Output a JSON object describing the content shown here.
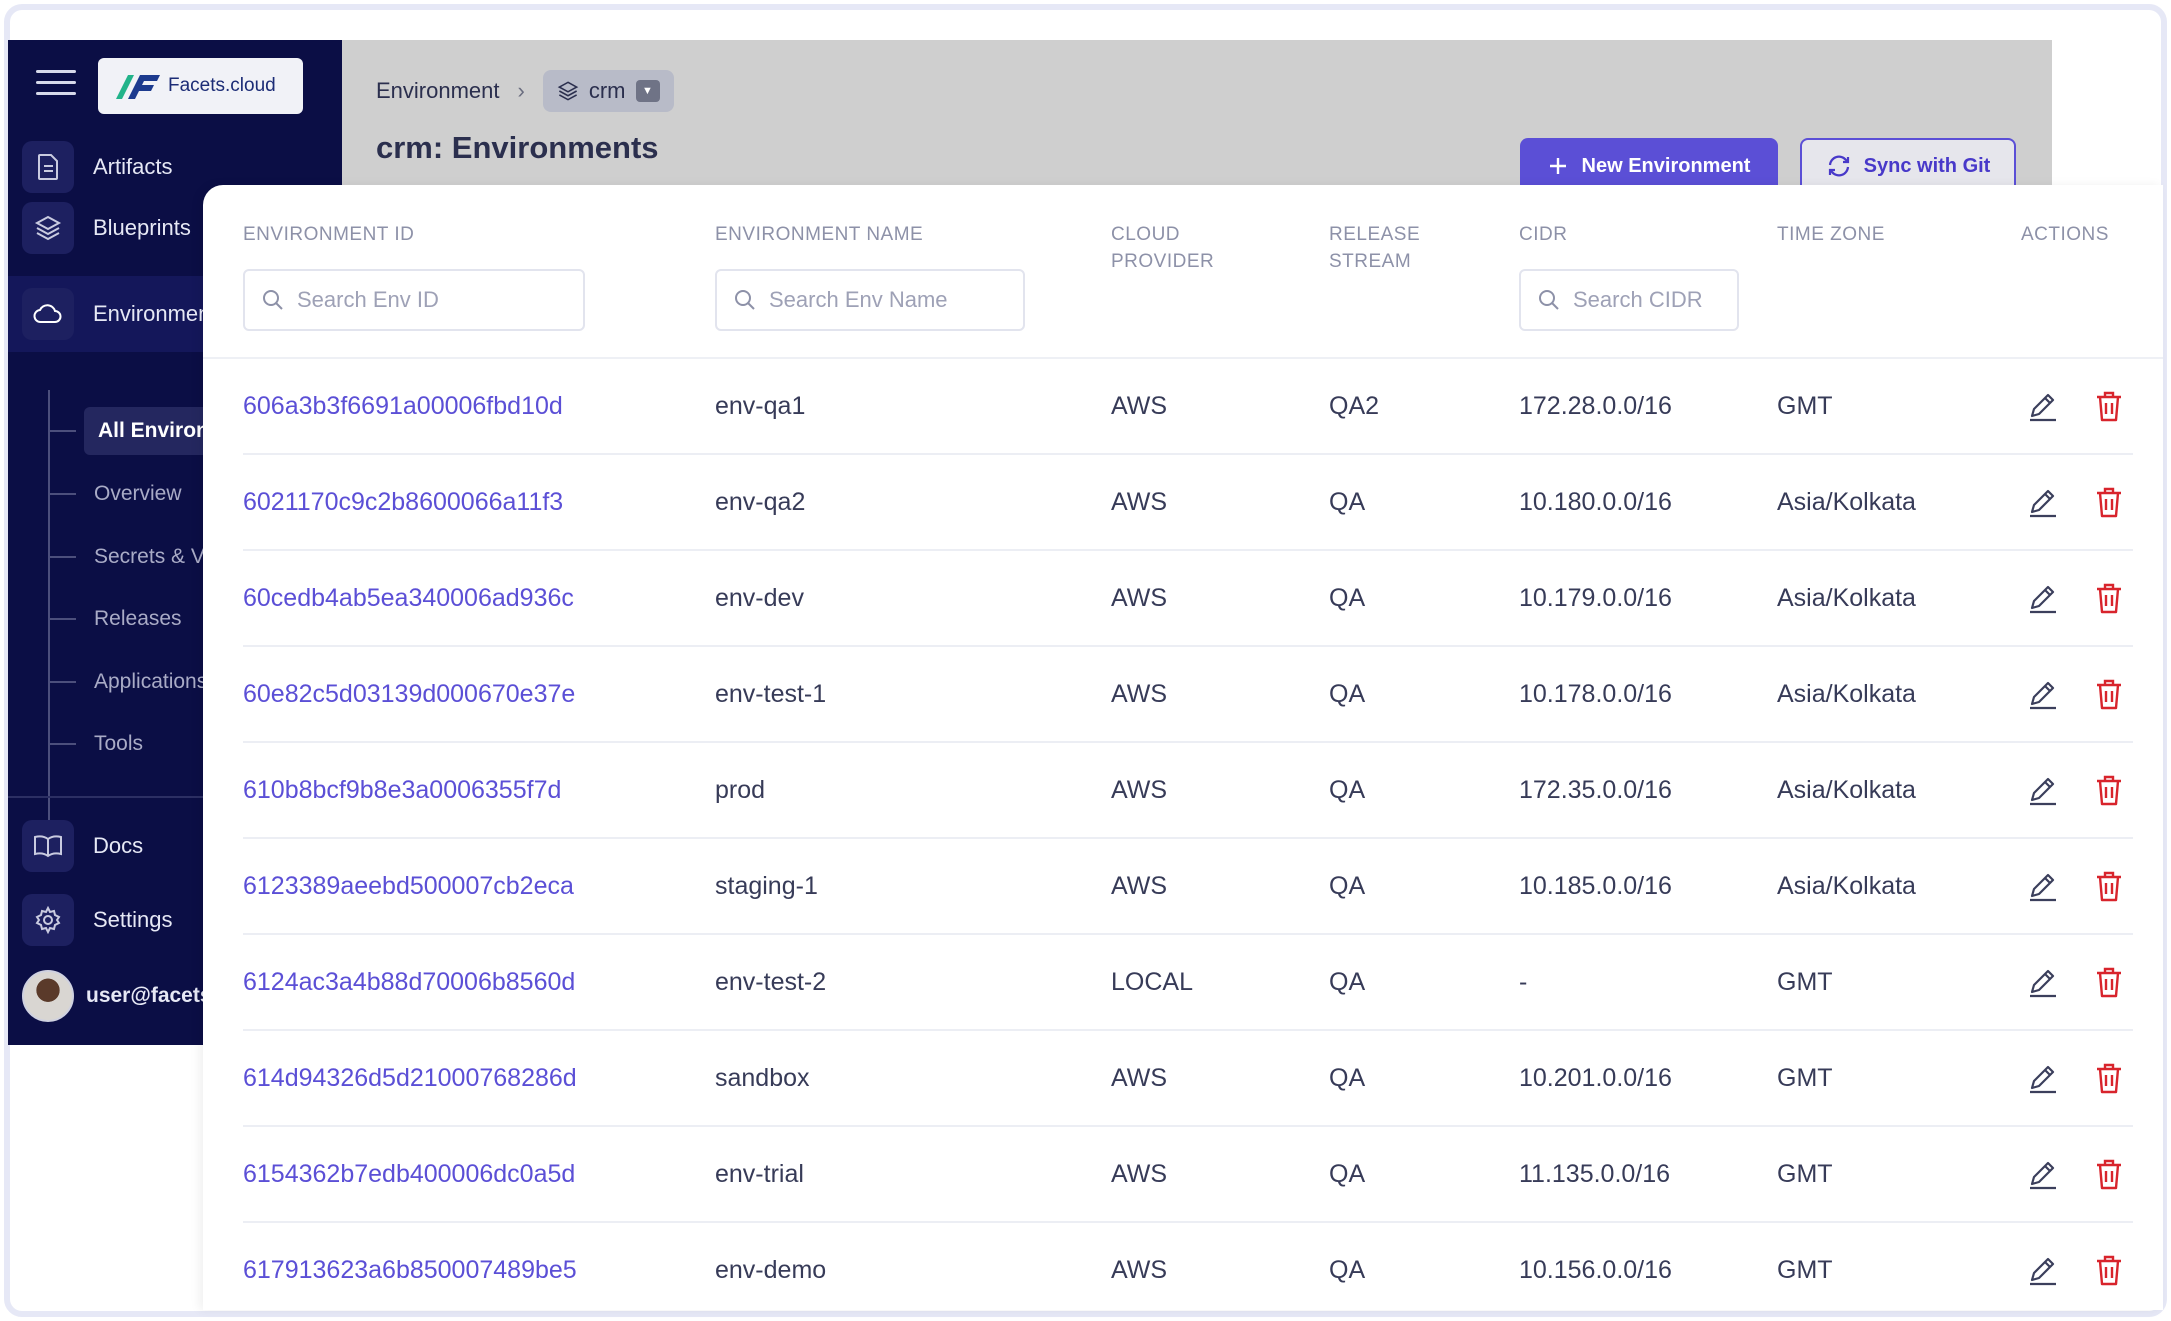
{
  "brand": {
    "name": "Facets.cloud"
  },
  "colors": {
    "accent": "#5b4fd6",
    "sidebar_bg": "#0b0e45",
    "delete": "#d8242c"
  },
  "sidebar": {
    "items": [
      {
        "label": "Artifacts",
        "icon": "document-icon"
      },
      {
        "label": "Blueprints",
        "icon": "layers-icon"
      },
      {
        "label": "Environments",
        "icon": "cloud-icon"
      }
    ],
    "sub_items": [
      {
        "label": "All Environments"
      },
      {
        "label": "Overview"
      },
      {
        "label": "Secrets & Variables"
      },
      {
        "label": "Releases"
      },
      {
        "label": "Applications"
      },
      {
        "label": "Tools"
      }
    ],
    "bottom_items": [
      {
        "label": "Docs",
        "icon": "book-icon"
      },
      {
        "label": "Settings",
        "icon": "gear-icon"
      }
    ],
    "user": "user@facets.cloud"
  },
  "header": {
    "breadcrumb_root": "Environment",
    "stack": "crm",
    "title": "crm: Environments",
    "new_button": "New Environment",
    "sync_button": "Sync with Git"
  },
  "table": {
    "columns": {
      "id": "ENVIRONMENT ID",
      "name": "ENVIRONMENT NAME",
      "cloud_1": "CLOUD",
      "cloud_2": "PROVIDER",
      "release_1": "RELEASE",
      "release_2": "STREAM",
      "cidr": "CIDR",
      "tz": "TIME ZONE",
      "actions": "ACTIONS"
    },
    "search": {
      "id_placeholder": "Search Env ID",
      "name_placeholder": "Search Env Name",
      "cidr_placeholder": "Search CIDR"
    },
    "rows": [
      {
        "id": "606a3b3f6691a00006fbd10d",
        "name": "env-qa1",
        "cloud": "AWS",
        "stream": "QA2",
        "cidr": "172.28.0.0/16",
        "tz": "GMT"
      },
      {
        "id": "6021170c9c2b8600066a11f3",
        "name": "env-qa2",
        "cloud": "AWS",
        "stream": "QA",
        "cidr": "10.180.0.0/16",
        "tz": "Asia/Kolkata"
      },
      {
        "id": "60cedb4ab5ea340006ad936c",
        "name": "env-dev",
        "cloud": "AWS",
        "stream": "QA",
        "cidr": "10.179.0.0/16",
        "tz": "Asia/Kolkata"
      },
      {
        "id": "60e82c5d03139d000670e37e",
        "name": "env-test-1",
        "cloud": "AWS",
        "stream": "QA",
        "cidr": "10.178.0.0/16",
        "tz": "Asia/Kolkata"
      },
      {
        "id": "610b8bcf9b8e3a0006355f7d",
        "name": "prod",
        "cloud": "AWS",
        "stream": "QA",
        "cidr": "172.35.0.0/16",
        "tz": "Asia/Kolkata"
      },
      {
        "id": "6123389aeebd500007cb2eca",
        "name": "staging-1",
        "cloud": "AWS",
        "stream": "QA",
        "cidr": "10.185.0.0/16",
        "tz": "Asia/Kolkata"
      },
      {
        "id": "6124ac3a4b88d70006b8560d",
        "name": "env-test-2",
        "cloud": "LOCAL",
        "stream": "QA",
        "cidr": "-",
        "tz": "GMT"
      },
      {
        "id": "614d94326d5d21000768286d",
        "name": "sandbox",
        "cloud": "AWS",
        "stream": "QA",
        "cidr": "10.201.0.0/16",
        "tz": "GMT"
      },
      {
        "id": "6154362b7edb400006dc0a5d",
        "name": "env-trial",
        "cloud": "AWS",
        "stream": "QA",
        "cidr": "11.135.0.0/16",
        "tz": "GMT"
      },
      {
        "id": "617913623a6b850007489be5",
        "name": "env-demo",
        "cloud": "AWS",
        "stream": "QA",
        "cidr": "10.156.0.0/16",
        "tz": "GMT"
      }
    ]
  }
}
